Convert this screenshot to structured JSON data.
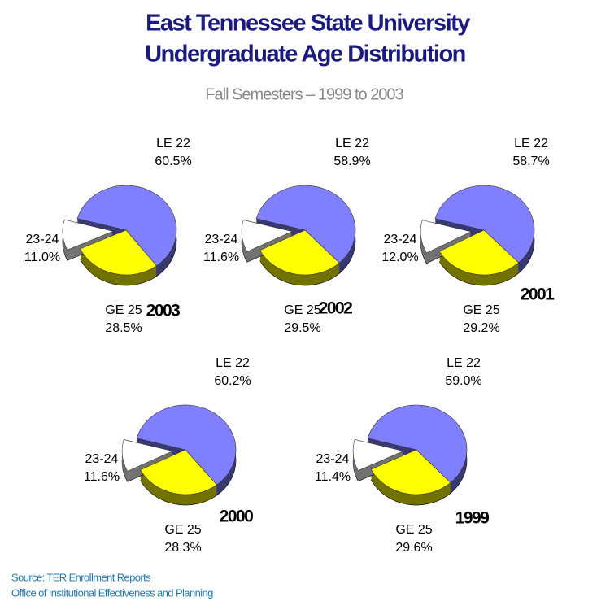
{
  "title": [
    "East Tennessee State University",
    "Undergraduate Age Distribution"
  ],
  "subtitle": "Fall Semesters – 1999 to 2003",
  "source": [
    "Source:  TER Enrollment Reports",
    "Office of Institutional Effectiveness and Planning"
  ],
  "chart_data": [
    {
      "type": "pie",
      "title": "2003",
      "categories": [
        "LE 22",
        "GE 25",
        "23-24"
      ],
      "values": [
        60.5,
        28.5,
        11.0
      ],
      "value_labels": [
        "60.5%",
        "28.5%",
        "11.0%"
      ],
      "colors": [
        "#8080ff",
        "#ffff00",
        "#ffffff"
      ],
      "exploded": "23-24"
    },
    {
      "type": "pie",
      "title": "2002",
      "categories": [
        "LE 22",
        "GE 25",
        "23-24"
      ],
      "values": [
        58.9,
        29.5,
        11.6
      ],
      "value_labels": [
        "58.9%",
        "29.5%",
        "11.6%"
      ],
      "colors": [
        "#8080ff",
        "#ffff00",
        "#ffffff"
      ],
      "exploded": "23-24"
    },
    {
      "type": "pie",
      "title": "2001",
      "categories": [
        "LE 22",
        "GE 25",
        "23-24"
      ],
      "values": [
        58.7,
        29.2,
        12.0
      ],
      "value_labels": [
        "58.7%",
        "29.2%",
        "12.0%"
      ],
      "colors": [
        "#8080ff",
        "#ffff00",
        "#ffffff"
      ],
      "exploded": "23-24"
    },
    {
      "type": "pie",
      "title": "2000",
      "categories": [
        "LE 22",
        "GE 25",
        "23-24"
      ],
      "values": [
        60.2,
        28.3,
        11.6
      ],
      "value_labels": [
        "60.2%",
        "28.3%",
        "11.6%"
      ],
      "colors": [
        "#8080ff",
        "#ffff00",
        "#ffffff"
      ],
      "exploded": "23-24"
    },
    {
      "type": "pie",
      "title": "1999",
      "categories": [
        "LE 22",
        "GE 25",
        "23-24"
      ],
      "values": [
        59.0,
        29.6,
        11.4
      ],
      "value_labels": [
        "59.0%",
        "29.6%",
        "11.4%"
      ],
      "colors": [
        "#8080ff",
        "#ffff00",
        "#ffffff"
      ],
      "exploded": "23-24"
    }
  ]
}
